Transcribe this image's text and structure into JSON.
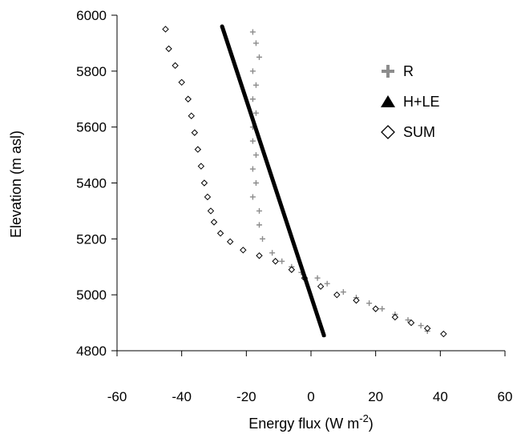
{
  "chart_data": {
    "type": "scatter",
    "xlabel": "Energy flux (W m",
    "xlabel_sup": "-2",
    "xlabel_end": ")",
    "ylabel": "Elevation (m asl)",
    "xlim": [
      -60,
      60
    ],
    "ylim": [
      4800,
      6000
    ],
    "xticks": [
      -60,
      -40,
      -20,
      0,
      20,
      40,
      60
    ],
    "yticks": [
      4800,
      5000,
      5200,
      5400,
      5600,
      5800,
      6000
    ],
    "grid": false,
    "legend_position": "top-right",
    "colors": {
      "R": "#8c8c8c",
      "H+LE": "#000000",
      "SUM": "#000000"
    },
    "series": [
      {
        "name": "R",
        "marker": "plus",
        "points": [
          [
            -18,
            5940
          ],
          [
            -17,
            5900
          ],
          [
            -16,
            5850
          ],
          [
            -18,
            5800
          ],
          [
            -17,
            5750
          ],
          [
            -18,
            5700
          ],
          [
            -17,
            5650
          ],
          [
            -18,
            5600
          ],
          [
            -18,
            5550
          ],
          [
            -17,
            5500
          ],
          [
            -18,
            5450
          ],
          [
            -17,
            5400
          ],
          [
            -18,
            5350
          ],
          [
            -16,
            5300
          ],
          [
            -16,
            5250
          ],
          [
            -15,
            5200
          ],
          [
            -12,
            5150
          ],
          [
            -9,
            5120
          ],
          [
            -6,
            5100
          ],
          [
            -3,
            5080
          ],
          [
            2,
            5060
          ],
          [
            5,
            5040
          ],
          [
            10,
            5010
          ],
          [
            14,
            4990
          ],
          [
            18,
            4970
          ],
          [
            22,
            4950
          ],
          [
            26,
            4930
          ],
          [
            30,
            4910
          ],
          [
            34,
            4890
          ],
          [
            36,
            4870
          ]
        ]
      },
      {
        "name": "H+LE",
        "marker": "triangle",
        "points": [
          [
            -27.5,
            5960
          ],
          [
            4,
            4855
          ]
        ]
      },
      {
        "name": "SUM",
        "marker": "diamond",
        "points": [
          [
            -45,
            5950
          ],
          [
            -44,
            5880
          ],
          [
            -42,
            5820
          ],
          [
            -40,
            5760
          ],
          [
            -38,
            5700
          ],
          [
            -37,
            5640
          ],
          [
            -36,
            5580
          ],
          [
            -35,
            5520
          ],
          [
            -34,
            5460
          ],
          [
            -33,
            5400
          ],
          [
            -32,
            5350
          ],
          [
            -31,
            5300
          ],
          [
            -30,
            5260
          ],
          [
            -28,
            5220
          ],
          [
            -25,
            5190
          ],
          [
            -21,
            5160
          ],
          [
            -16,
            5140
          ],
          [
            -11,
            5120
          ],
          [
            -6,
            5090
          ],
          [
            -2,
            5060
          ],
          [
            3,
            5030
          ],
          [
            8,
            5000
          ],
          [
            14,
            4980
          ],
          [
            20,
            4950
          ],
          [
            26,
            4920
          ],
          [
            31,
            4900
          ],
          [
            36,
            4880
          ],
          [
            41,
            4860
          ]
        ]
      }
    ]
  }
}
